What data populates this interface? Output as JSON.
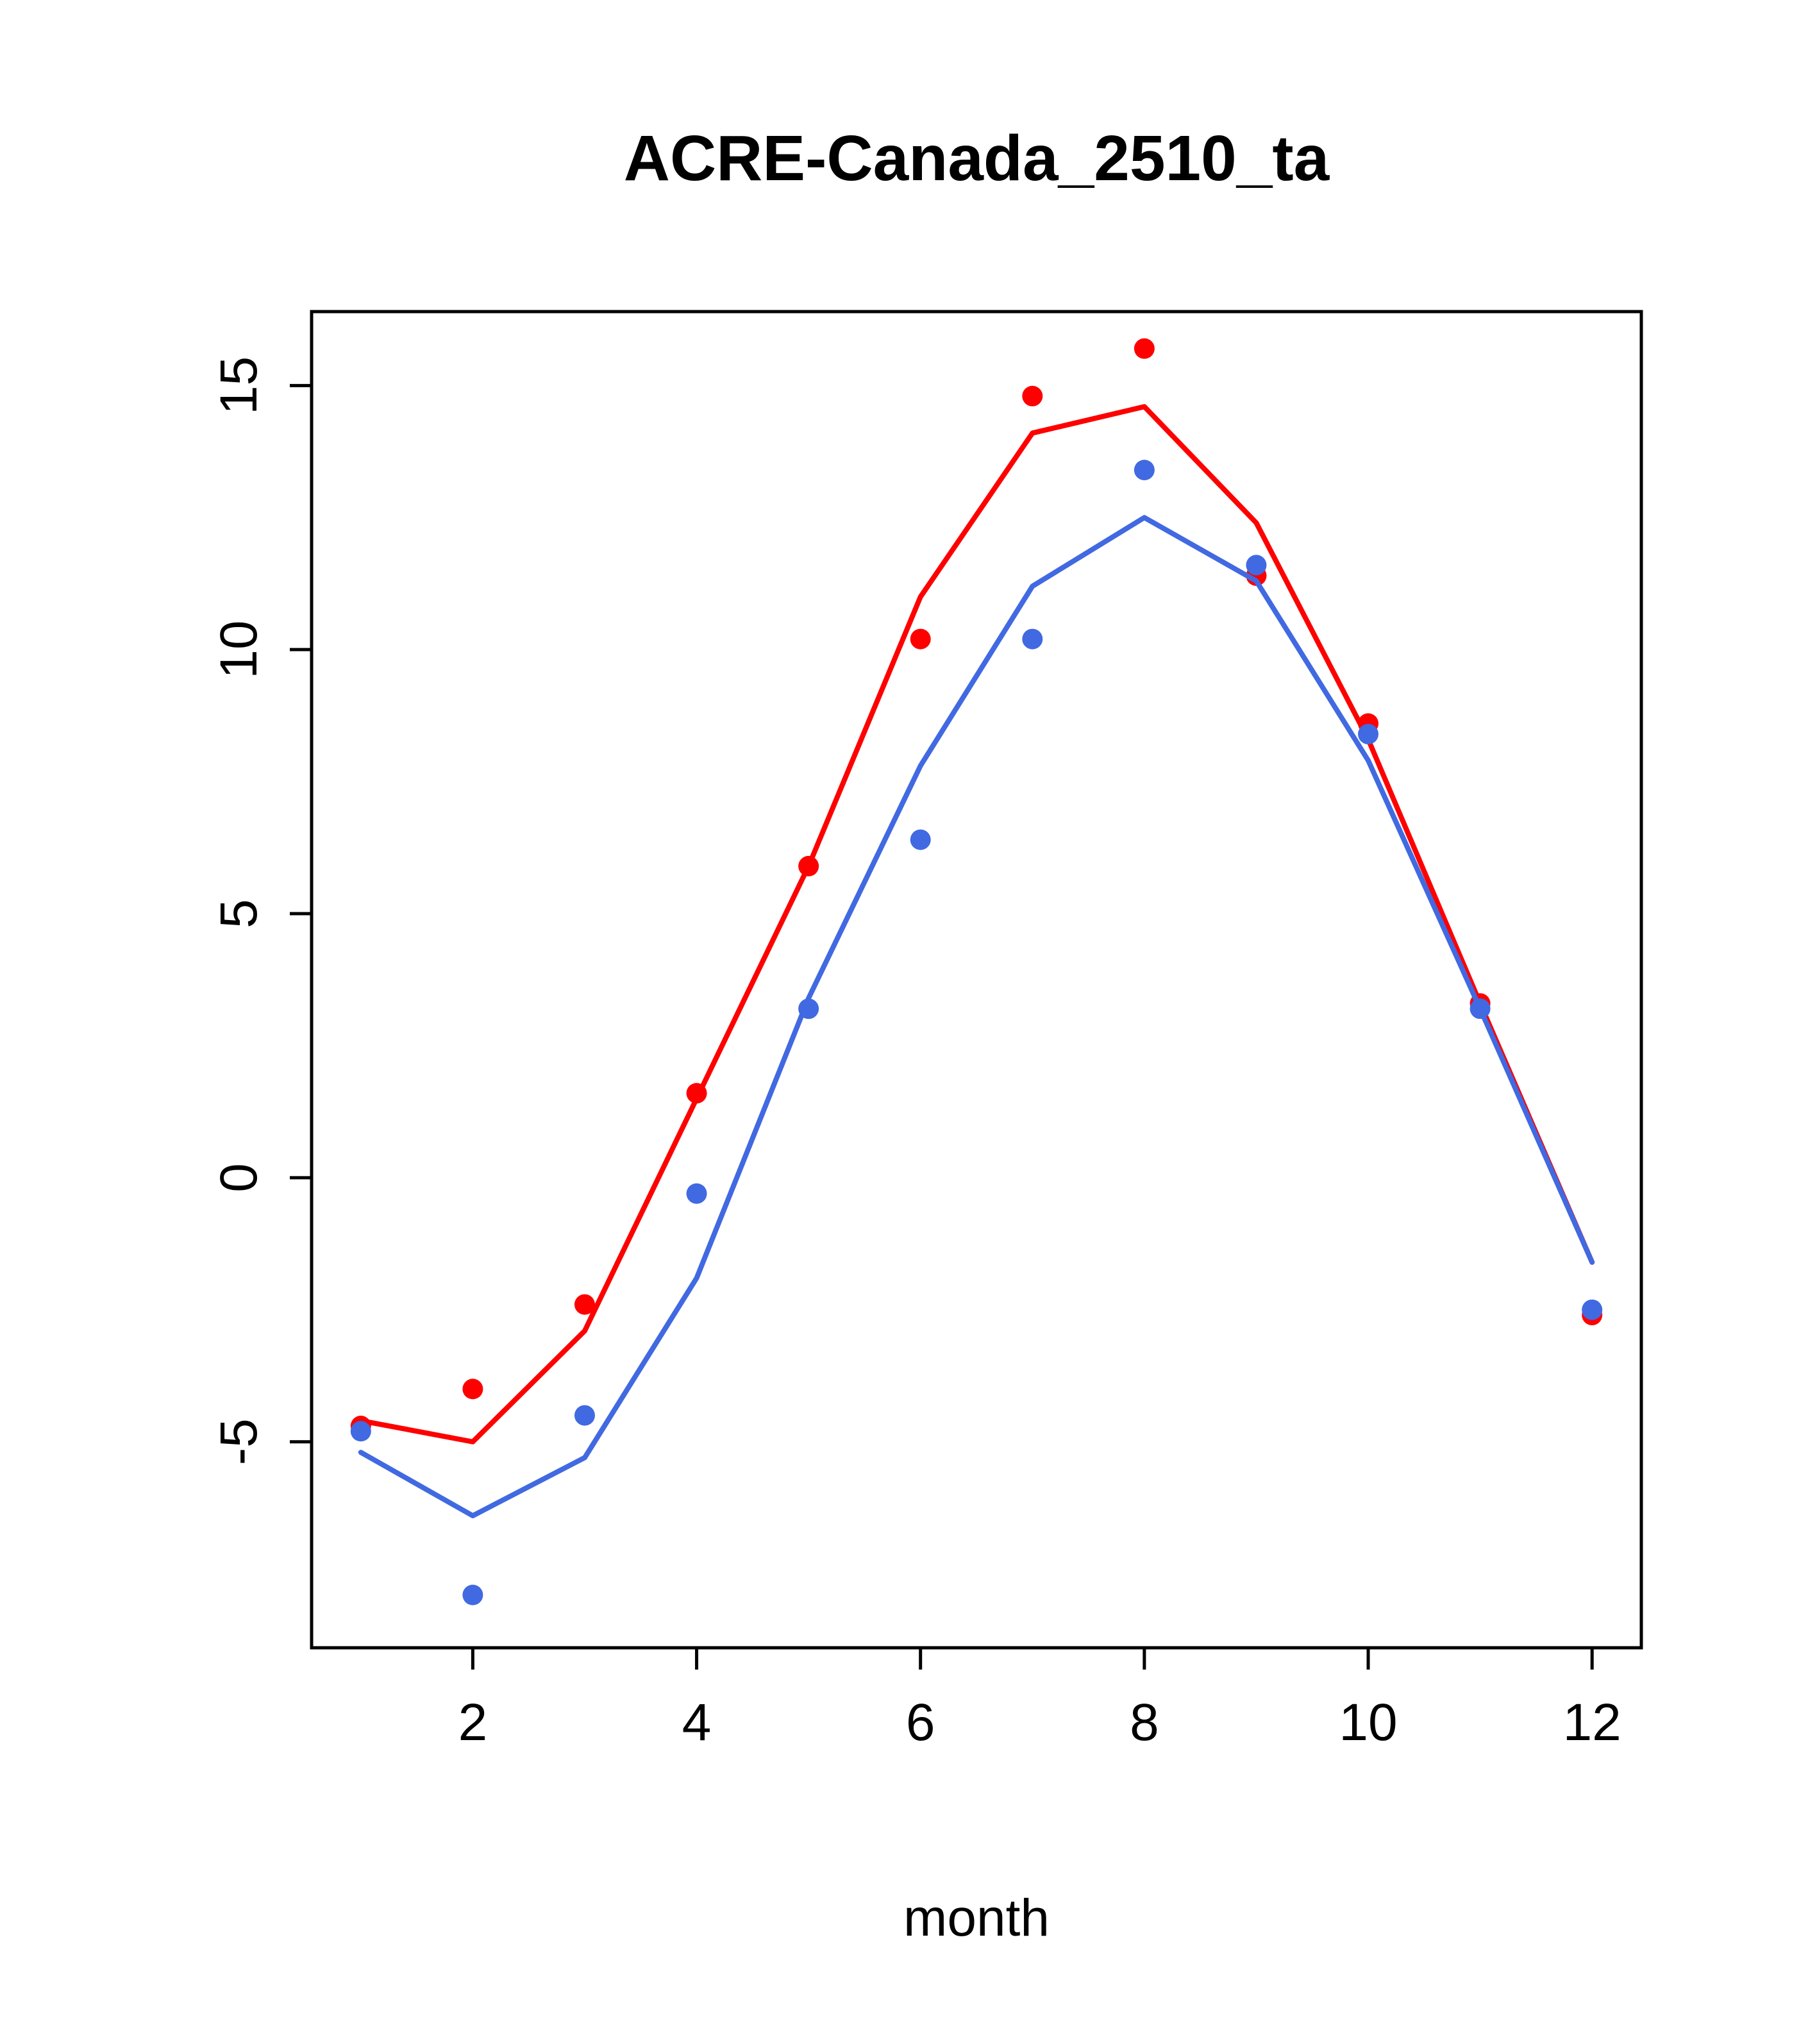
{
  "page": {
    "background": "#ffffff"
  },
  "chart_data": {
    "type": "line",
    "title": "ACRE-Canada_2510_ta",
    "xlabel": "month",
    "ylabel": "",
    "x": [
      1,
      2,
      3,
      4,
      5,
      6,
      7,
      8,
      9,
      10,
      11,
      12
    ],
    "xlim": [
      0.56,
      12.44
    ],
    "ylim": [
      -8.9,
      16.4
    ],
    "xticks": [
      2,
      4,
      6,
      8,
      10,
      12
    ],
    "yticks": [
      -5,
      0,
      5,
      10,
      15
    ],
    "grid": false,
    "legend": "none",
    "box": true,
    "colors": {
      "red": "#ff0000",
      "blue": "#4169e1",
      "axis": "#000000"
    },
    "series": [
      {
        "name": "red-line",
        "style": "line",
        "color": "#ff0000",
        "values": [
          -4.6,
          -5.0,
          -2.9,
          1.5,
          5.9,
          11.0,
          14.1,
          14.6,
          12.4,
          8.3,
          3.3,
          -1.6
        ]
      },
      {
        "name": "red-points",
        "style": "scatter",
        "color": "#ff0000",
        "values": [
          -4.7,
          -4.0,
          -2.4,
          1.6,
          5.9,
          10.2,
          14.8,
          15.7,
          11.4,
          8.6,
          3.3,
          -2.6
        ]
      },
      {
        "name": "blue-line",
        "style": "line",
        "color": "#4169e1",
        "values": [
          -5.2,
          -6.4,
          -5.3,
          -1.9,
          3.4,
          7.8,
          11.2,
          12.5,
          11.3,
          7.9,
          3.2,
          -1.6
        ]
      },
      {
        "name": "blue-points",
        "style": "scatter",
        "color": "#4169e1",
        "values": [
          -4.8,
          -7.9,
          -4.5,
          -0.3,
          3.2,
          6.4,
          10.2,
          13.4,
          11.6,
          8.4,
          3.2,
          -2.5
        ]
      }
    ]
  }
}
